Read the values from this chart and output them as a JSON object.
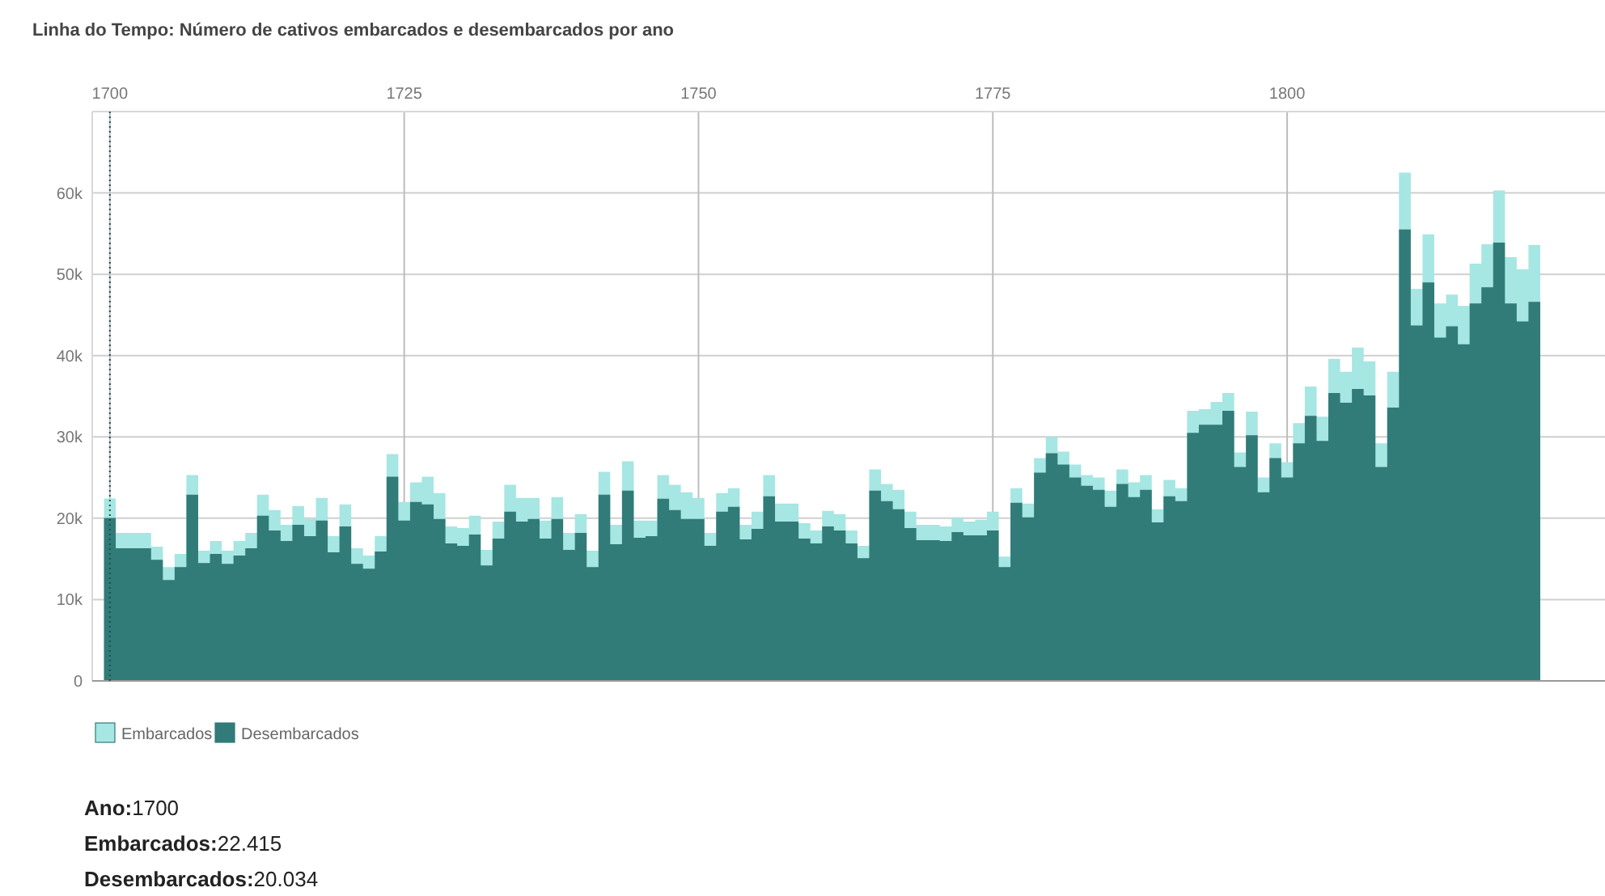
{
  "chart_data": {
    "type": "area",
    "title": "Linha do Tempo: Número de cativos embarcados e desembarcados por ano",
    "x": [
      1700,
      1701,
      1702,
      1703,
      1704,
      1705,
      1706,
      1707,
      1708,
      1709,
      1710,
      1711,
      1712,
      1713,
      1714,
      1715,
      1716,
      1717,
      1718,
      1719,
      1720,
      1721,
      1722,
      1723,
      1724,
      1725,
      1726,
      1727,
      1728,
      1729,
      1730,
      1731,
      1732,
      1733,
      1734,
      1735,
      1736,
      1737,
      1738,
      1739,
      1740,
      1741,
      1742,
      1743,
      1744,
      1745,
      1746,
      1747,
      1748,
      1749,
      1750,
      1751,
      1752,
      1753,
      1754,
      1755,
      1756,
      1757,
      1758,
      1759,
      1760,
      1761,
      1762,
      1763,
      1764,
      1765,
      1766,
      1767,
      1768,
      1769,
      1770,
      1771,
      1772,
      1773,
      1774,
      1775,
      1776,
      1777,
      1778,
      1779,
      1780,
      1781,
      1782,
      1783,
      1784,
      1785,
      1786,
      1787,
      1788,
      1789,
      1790,
      1791,
      1792,
      1793,
      1794,
      1795,
      1796,
      1797,
      1798,
      1799,
      1800,
      1801,
      1802,
      1803,
      1804,
      1805,
      1806,
      1807,
      1808,
      1809,
      1810,
      1811,
      1812,
      1813,
      1814,
      1815,
      1816,
      1817,
      1818,
      1819,
      1820,
      1821
    ],
    "series": [
      {
        "name": "Embarcados",
        "color": "#a6e6e3",
        "values": [
          22415,
          18200,
          18200,
          18200,
          16500,
          14000,
          15600,
          25300,
          16000,
          17200,
          16000,
          17200,
          18200,
          22900,
          21000,
          19200,
          21500,
          19900,
          22500,
          17800,
          21700,
          16300,
          15400,
          17800,
          27900,
          22000,
          24400,
          25100,
          23100,
          19000,
          18800,
          20300,
          16100,
          19600,
          24100,
          22500,
          22500,
          19700,
          22600,
          18200,
          20500,
          16000,
          25700,
          19200,
          27000,
          19700,
          19700,
          25300,
          24100,
          23200,
          22500,
          18200,
          23100,
          23700,
          19200,
          20800,
          25300,
          21800,
          21800,
          19400,
          18500,
          20900,
          20500,
          18500,
          16600,
          26000,
          24200,
          23500,
          20800,
          19200,
          19200,
          19000,
          20100,
          19600,
          19800,
          20800,
          15300,
          23700,
          21800,
          27400,
          30000,
          28200,
          26600,
          25300,
          25000,
          23400,
          26000,
          24400,
          25300,
          21100,
          24700,
          23700,
          33200,
          33400,
          34300,
          35400,
          28100,
          33100,
          25000,
          29200,
          26900,
          31700,
          36200,
          32500,
          39600,
          38000,
          41000,
          39300,
          29200,
          38000,
          62500,
          48200,
          54900,
          46400,
          47500,
          46100,
          51300,
          53700,
          60300,
          52100,
          50600,
          53600
        ]
      },
      {
        "name": "Desembarcados",
        "color": "#317b78",
        "values": [
          20034,
          16300,
          16300,
          16300,
          14900,
          12400,
          14000,
          22900,
          14500,
          15600,
          14400,
          15400,
          16300,
          20300,
          18500,
          17200,
          19200,
          17800,
          19700,
          15800,
          19000,
          14400,
          13800,
          15900,
          25100,
          19700,
          22000,
          21700,
          19900,
          16900,
          16600,
          18000,
          14200,
          17500,
          20800,
          19600,
          19900,
          17500,
          19900,
          16100,
          18200,
          14000,
          22900,
          16800,
          23400,
          17600,
          17800,
          22400,
          21000,
          19900,
          19900,
          16600,
          20800,
          21400,
          17400,
          18700,
          22700,
          19600,
          19600,
          17500,
          16900,
          19000,
          18500,
          16900,
          15100,
          23400,
          22100,
          21100,
          18800,
          17300,
          17300,
          17200,
          18300,
          17900,
          17900,
          18500,
          14000,
          21900,
          20100,
          25600,
          28000,
          26600,
          25000,
          24000,
          23500,
          21400,
          24200,
          22600,
          23500,
          19500,
          22700,
          22100,
          30500,
          31500,
          31500,
          33200,
          26300,
          30200,
          23200,
          27400,
          25000,
          29200,
          32600,
          29500,
          35400,
          34200,
          35900,
          35100,
          26300,
          33600,
          55500,
          43700,
          49000,
          42200,
          43600,
          41400,
          46400,
          48400,
          53900,
          46400,
          44200,
          46600
        ]
      }
    ],
    "xlim": [
      1698.5,
      1827
    ],
    "xticks": [
      1700,
      1725,
      1750,
      1775,
      1800
    ],
    "ylim": [
      0,
      70000
    ],
    "yticks": [
      0,
      {
        "value": 10000,
        "label": "10k"
      },
      {
        "value": 20000,
        "label": "20k"
      },
      {
        "value": 30000,
        "label": "30k"
      },
      {
        "value": 40000,
        "label": "40k"
      },
      {
        "value": 50000,
        "label": "50k"
      },
      {
        "value": 60000,
        "label": "60k"
      }
    ],
    "grid": true,
    "legend": "bottom",
    "ref_lines": [
      {
        "axis": "x",
        "value": 1700,
        "color": "#1f4f4d",
        "line_style": "dotted"
      }
    ],
    "annotations": [
      "Ano:1700",
      "Embarcados:22.415",
      "Desembarcados:20.034"
    ]
  }
}
